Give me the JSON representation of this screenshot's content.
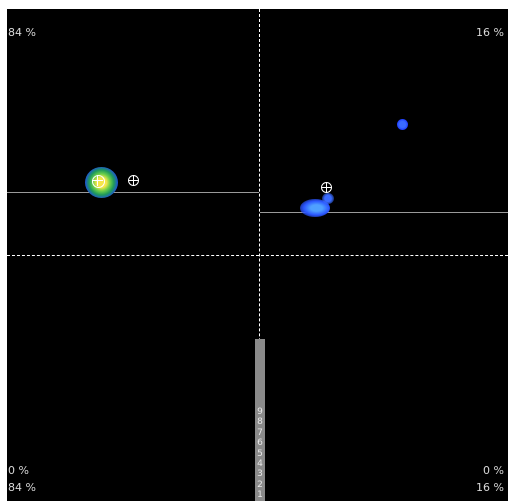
{
  "quadrant_labels": {
    "top_left": "84 %",
    "top_right": "16 %",
    "bottom_left_upper": "0 %",
    "bottom_left_lower": "84 %",
    "bottom_right_upper": "0 %",
    "bottom_right_lower": "16 %"
  },
  "scale_ticks": [
    "9",
    "8",
    "7",
    "6",
    "5",
    "4",
    "3",
    "2",
    "1"
  ],
  "colors": {
    "background": "#000000",
    "heat_low": "#1e3cff",
    "heat_mid": "#2aa84a",
    "heat_high": "#f5e64a",
    "label_text": "#d8d8d8",
    "scale_bar": "#8a8a8a"
  },
  "icons": [
    "crosshair-icon"
  ]
}
